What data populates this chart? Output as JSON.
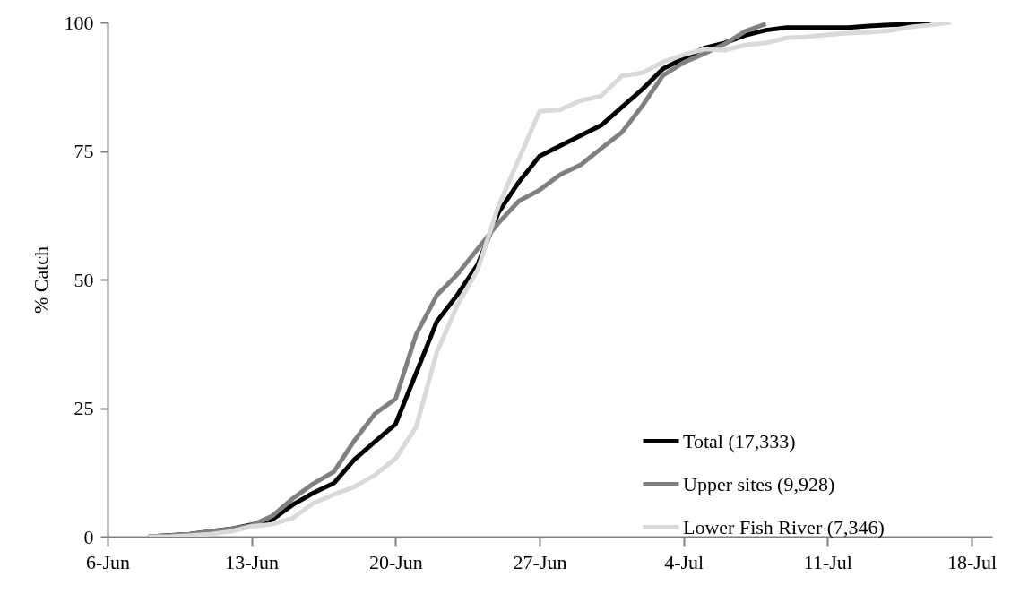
{
  "chart_data": {
    "type": "line",
    "ylabel": "% Catch",
    "x": [
      "--06-08",
      "--06-09",
      "--06-10",
      "--06-11",
      "--06-12",
      "--06-13",
      "--06-14",
      "--06-15",
      "--06-16",
      "--06-17",
      "--06-18",
      "--06-19",
      "--06-20",
      "--06-21",
      "--06-22",
      "--06-23",
      "--06-24",
      "--06-25",
      "--06-26",
      "--06-27",
      "--06-28",
      "--06-29",
      "--06-30",
      "--07-01",
      "--07-02",
      "--07-03",
      "--07-04",
      "--07-05",
      "--07-06",
      "--07-07",
      "--07-08",
      "--07-09",
      "--07-10",
      "--07-11",
      "--07-12",
      "--07-13",
      "--07-14",
      "--07-15",
      "--07-16",
      "--07-17"
    ],
    "series": [
      {
        "name": "Total (17,333)",
        "color": "#000000",
        "values": [
          0,
          null,
          0.5,
          1,
          1.5,
          2.3,
          3.3,
          6.2,
          8.5,
          10.4,
          15,
          18.5,
          21.9,
          31.8,
          41.8,
          47,
          53,
          63,
          69,
          74,
          76,
          78,
          80,
          83.5,
          87,
          91,
          93,
          95,
          96,
          97.5,
          98.5,
          99,
          99,
          99,
          99,
          99.3,
          99.5,
          99.7,
          100,
          null
        ]
      },
      {
        "name": "Upper sites (9,928)",
        "color": "#808080",
        "values": [
          0,
          0.2,
          0.5,
          1,
          1.5,
          2.2,
          4,
          7.4,
          10.3,
          12.6,
          18.7,
          23.9,
          26.8,
          39.3,
          46.9,
          51,
          56,
          61,
          65.3,
          67.4,
          70.4,
          72.3,
          75.5,
          78.6,
          83.8,
          89.7,
          92.2,
          93.9,
          95.8,
          98.3,
          99.7,
          null,
          null,
          null,
          null,
          null,
          null,
          null,
          null,
          null
        ]
      },
      {
        "name": "Lower Fish River (7,346)",
        "color": "#d9d9d9",
        "values": [
          0,
          0,
          0.2,
          0.5,
          1,
          2,
          2.4,
          3.6,
          6.5,
          8.2,
          9.7,
          12,
          15.2,
          21.3,
          35.8,
          45,
          52,
          64.3,
          73.5,
          82.7,
          83,
          84.8,
          85.7,
          89.6,
          90.2,
          92.3,
          93.7,
          94.8,
          94.6,
          95.6,
          96,
          97,
          97.2,
          97.6,
          97.9,
          98.1,
          98.4,
          99.1,
          99.5,
          100
        ]
      }
    ],
    "xlim": [
      "--06-06",
      "--07-19"
    ],
    "xticks": [
      {
        "value": "--06-06",
        "label": "6-Jun"
      },
      {
        "value": "--06-13",
        "label": "13-Jun"
      },
      {
        "value": "--06-20",
        "label": "20-Jun"
      },
      {
        "value": "--06-27",
        "label": "27-Jun"
      },
      {
        "value": "--07-04",
        "label": "4-Jul"
      },
      {
        "value": "--07-11",
        "label": "11-Jul"
      },
      {
        "value": "--07-18",
        "label": "18-Jul"
      }
    ],
    "ylim": [
      0,
      100
    ],
    "yticks": [
      0,
      25,
      50,
      75,
      100
    ],
    "legend": "right",
    "line_style": "solid",
    "marker": "none"
  }
}
